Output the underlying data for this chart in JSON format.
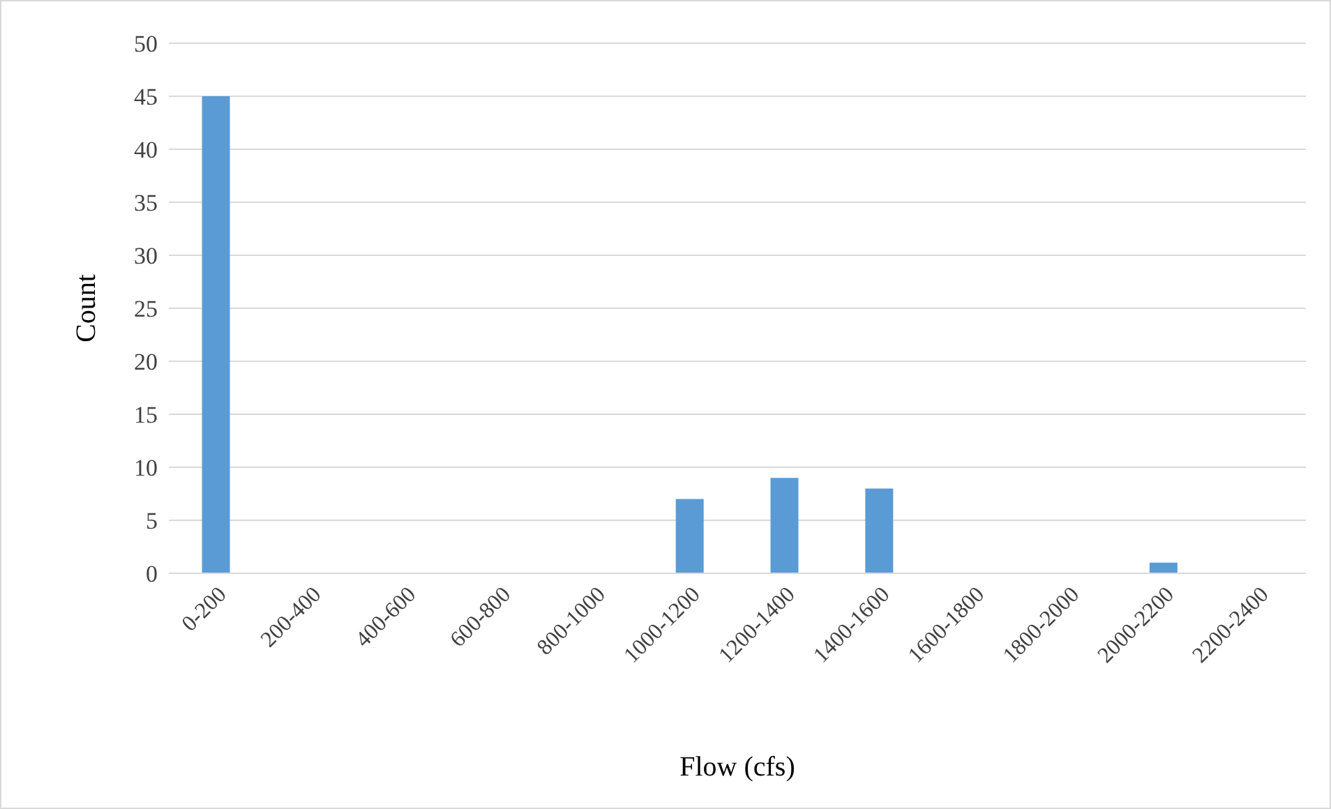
{
  "chart_data": {
    "type": "bar",
    "xlabel": "Flow (cfs)",
    "ylabel": "Count",
    "categories": [
      "0-200",
      "200-400",
      "400-600",
      "600-800",
      "800-1000",
      "1000-1200",
      "1200-1400",
      "1400-1600",
      "1600-1800",
      "1800-2000",
      "2000-2200",
      "2200-2400"
    ],
    "values": [
      45,
      0,
      0,
      0,
      0,
      7,
      9,
      8,
      0,
      0,
      1,
      0
    ],
    "color": "#5b9bd5",
    "ylim": [
      0,
      50
    ],
    "yticks": [
      0,
      5,
      10,
      15,
      20,
      25,
      30,
      35,
      40,
      45,
      50
    ],
    "grid": "y",
    "legend": false
  }
}
